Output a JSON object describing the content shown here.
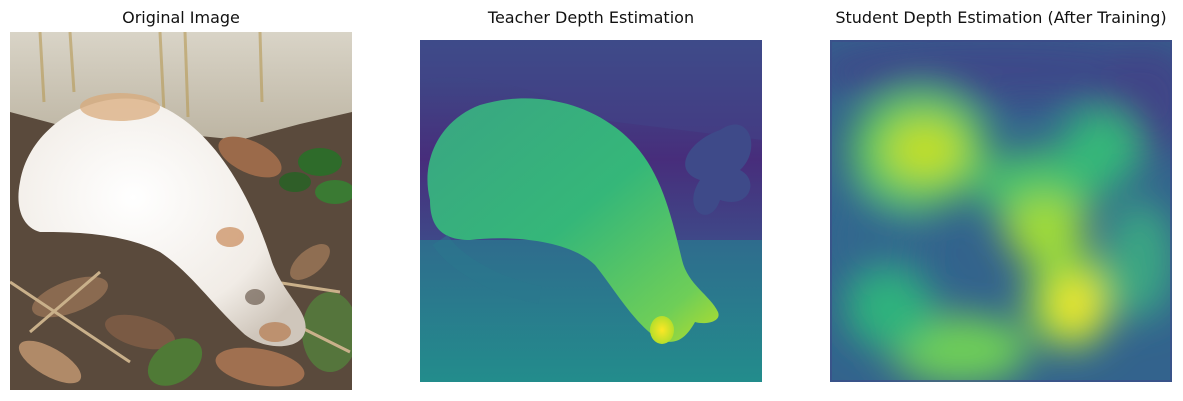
{
  "panels": [
    {
      "title": "Original Image"
    },
    {
      "title": "Teacher Depth Estimation"
    },
    {
      "title": "Student Depth Estimation (After Training)"
    }
  ],
  "colors": {
    "viridis_dark": "#440154",
    "viridis_blue": "#3b528b",
    "viridis_teal": "#21918c",
    "viridis_green": "#5ec962",
    "viridis_yellow": "#fde725"
  }
}
